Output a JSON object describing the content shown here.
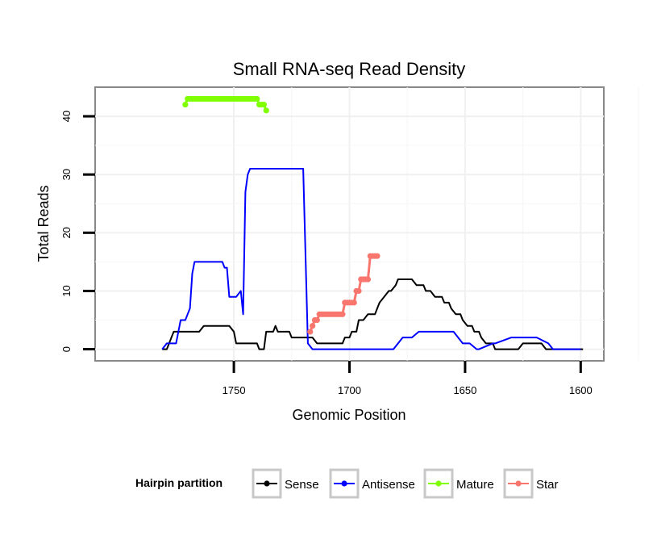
{
  "chart_data": {
    "type": "line",
    "title": "Small RNA-seq Read Density",
    "xlabel": "Genomic Position",
    "ylabel": "Total Reads",
    "xlim": [
      1810,
      1590
    ],
    "ylim": [
      -2,
      45
    ],
    "x_reversed": true,
    "x_ticks": [
      1750,
      1700,
      1650,
      1600
    ],
    "x_tick_labels": [
      "1750",
      "1700",
      "1650",
      "1600"
    ],
    "y_ticks": [
      0,
      10,
      20,
      30,
      40
    ],
    "y_tick_labels": [
      "0",
      "10",
      "20",
      "30",
      "40"
    ],
    "grid": true,
    "legend": {
      "title": "Hairpin partition",
      "position": "bottom",
      "entries": [
        {
          "name": "Sense",
          "color": "#000000"
        },
        {
          "name": "Antisense",
          "color": "#0000ff"
        },
        {
          "name": "Mature",
          "color": "#7fff00"
        },
        {
          "name": "Star",
          "color": "#f8766d"
        }
      ]
    },
    "series": [
      {
        "name": "Sense",
        "color": "#000000",
        "style": "line",
        "x": [
          1781,
          1779,
          1777,
          1776,
          1765,
          1763,
          1752,
          1750,
          1749,
          1740,
          1739,
          1737,
          1736,
          1734,
          1733,
          1732,
          1731,
          1730,
          1729,
          1726,
          1725,
          1716,
          1714,
          1712,
          1709,
          1708,
          1707,
          1706,
          1705,
          1704,
          1703,
          1702,
          1701,
          1700,
          1699,
          1698,
          1697,
          1696,
          1695,
          1694,
          1692,
          1691,
          1690,
          1689,
          1688,
          1687,
          1685,
          1683,
          1682,
          1680,
          1679,
          1677,
          1676,
          1674,
          1673,
          1671,
          1670,
          1668,
          1667,
          1665,
          1663,
          1662,
          1660,
          1659,
          1657,
          1656,
          1654,
          1652,
          1651,
          1649,
          1647,
          1646,
          1644,
          1643,
          1641,
          1638,
          1637,
          1635,
          1634,
          1627,
          1625,
          1617,
          1615,
          1599
        ],
        "y": [
          0,
          0,
          2,
          3,
          3,
          4,
          4,
          3,
          1,
          1,
          0,
          0,
          3,
          3,
          3,
          4,
          3,
          3,
          3,
          3,
          2,
          2,
          1,
          1,
          1,
          1,
          1,
          1,
          1,
          1,
          1,
          2,
          2,
          2,
          3,
          3,
          3,
          5,
          5,
          5,
          6,
          6,
          6,
          6,
          7,
          8,
          9,
          10,
          10,
          11,
          12,
          12,
          12,
          12,
          12,
          11,
          11,
          11,
          10,
          10,
          9,
          9,
          9,
          8,
          8,
          7,
          6,
          6,
          5,
          4,
          4,
          3,
          3,
          2,
          1,
          1,
          0,
          0,
          0,
          0,
          1,
          1,
          0,
          0
        ]
      },
      {
        "name": "Antisense",
        "color": "#0000ff",
        "style": "line",
        "x": [
          1781,
          1779,
          1777,
          1776,
          1775,
          1773,
          1771,
          1770,
          1769,
          1768,
          1767,
          1766,
          1763,
          1760,
          1755,
          1754,
          1753,
          1752,
          1751,
          1749,
          1747,
          1746,
          1745,
          1744,
          1743,
          1742,
          1741,
          1740,
          1737,
          1733,
          1730,
          1728,
          1725,
          1722,
          1720,
          1718,
          1716,
          1713,
          1712,
          1711,
          1710,
          1700,
          1690,
          1685,
          1684,
          1683,
          1681,
          1677,
          1673,
          1670,
          1661,
          1660,
          1659,
          1655,
          1651,
          1649,
          1648,
          1645,
          1644,
          1638,
          1637,
          1630,
          1630,
          1621,
          1619,
          1614,
          1612,
          1610,
          1607,
          1600
        ],
        "y": [
          0,
          1,
          1,
          1,
          1,
          5,
          5,
          6,
          7,
          13,
          15,
          15,
          15,
          15,
          15,
          14,
          14,
          9,
          9,
          9,
          10,
          6,
          27,
          30,
          31,
          31,
          31,
          31,
          31,
          31,
          31,
          31,
          31,
          31,
          31,
          1,
          0,
          0,
          0,
          0,
          0,
          0,
          0,
          0,
          0,
          0,
          0,
          2,
          2,
          3,
          3,
          3,
          3,
          3,
          1,
          1,
          1,
          0,
          0,
          1,
          1,
          2,
          2,
          2,
          2,
          1,
          0,
          0,
          0,
          0
        ]
      },
      {
        "name": "Mature",
        "color": "#7fff00",
        "style": "points",
        "x": [
          1771,
          1770,
          1769,
          1768,
          1767,
          1766,
          1765,
          1764,
          1763,
          1762,
          1761,
          1760,
          1759,
          1758,
          1757,
          1756,
          1755,
          1754,
          1753,
          1752,
          1751,
          1750,
          1749,
          1748,
          1747,
          1746,
          1745,
          1744,
          1743,
          1742,
          1741,
          1740,
          1739,
          1738,
          1737,
          1736
        ],
        "y": [
          42,
          43,
          43,
          43,
          43,
          43,
          43,
          43,
          43,
          43,
          43,
          43,
          43,
          43,
          43,
          43,
          43,
          43,
          43,
          43,
          43,
          43,
          43,
          43,
          43,
          43,
          43,
          43,
          43,
          43,
          43,
          43,
          42,
          42,
          42,
          41
        ]
      },
      {
        "name": "Star",
        "color": "#f8766d",
        "style": "points",
        "x": [
          1717,
          1716,
          1715,
          1714,
          1713,
          1712,
          1711,
          1710,
          1709,
          1708,
          1707,
          1706,
          1705,
          1704,
          1703,
          1702,
          1701,
          1700,
          1699,
          1698,
          1697,
          1696,
          1695,
          1694,
          1693,
          1692,
          1691,
          1690,
          1689,
          1688
        ],
        "y": [
          3,
          4,
          5,
          5,
          6,
          6,
          6,
          6,
          6,
          6,
          6,
          6,
          6,
          6,
          6,
          8,
          8,
          8,
          8,
          8,
          10,
          10,
          12,
          12,
          12,
          12,
          16,
          16,
          16,
          16
        ]
      }
    ]
  }
}
